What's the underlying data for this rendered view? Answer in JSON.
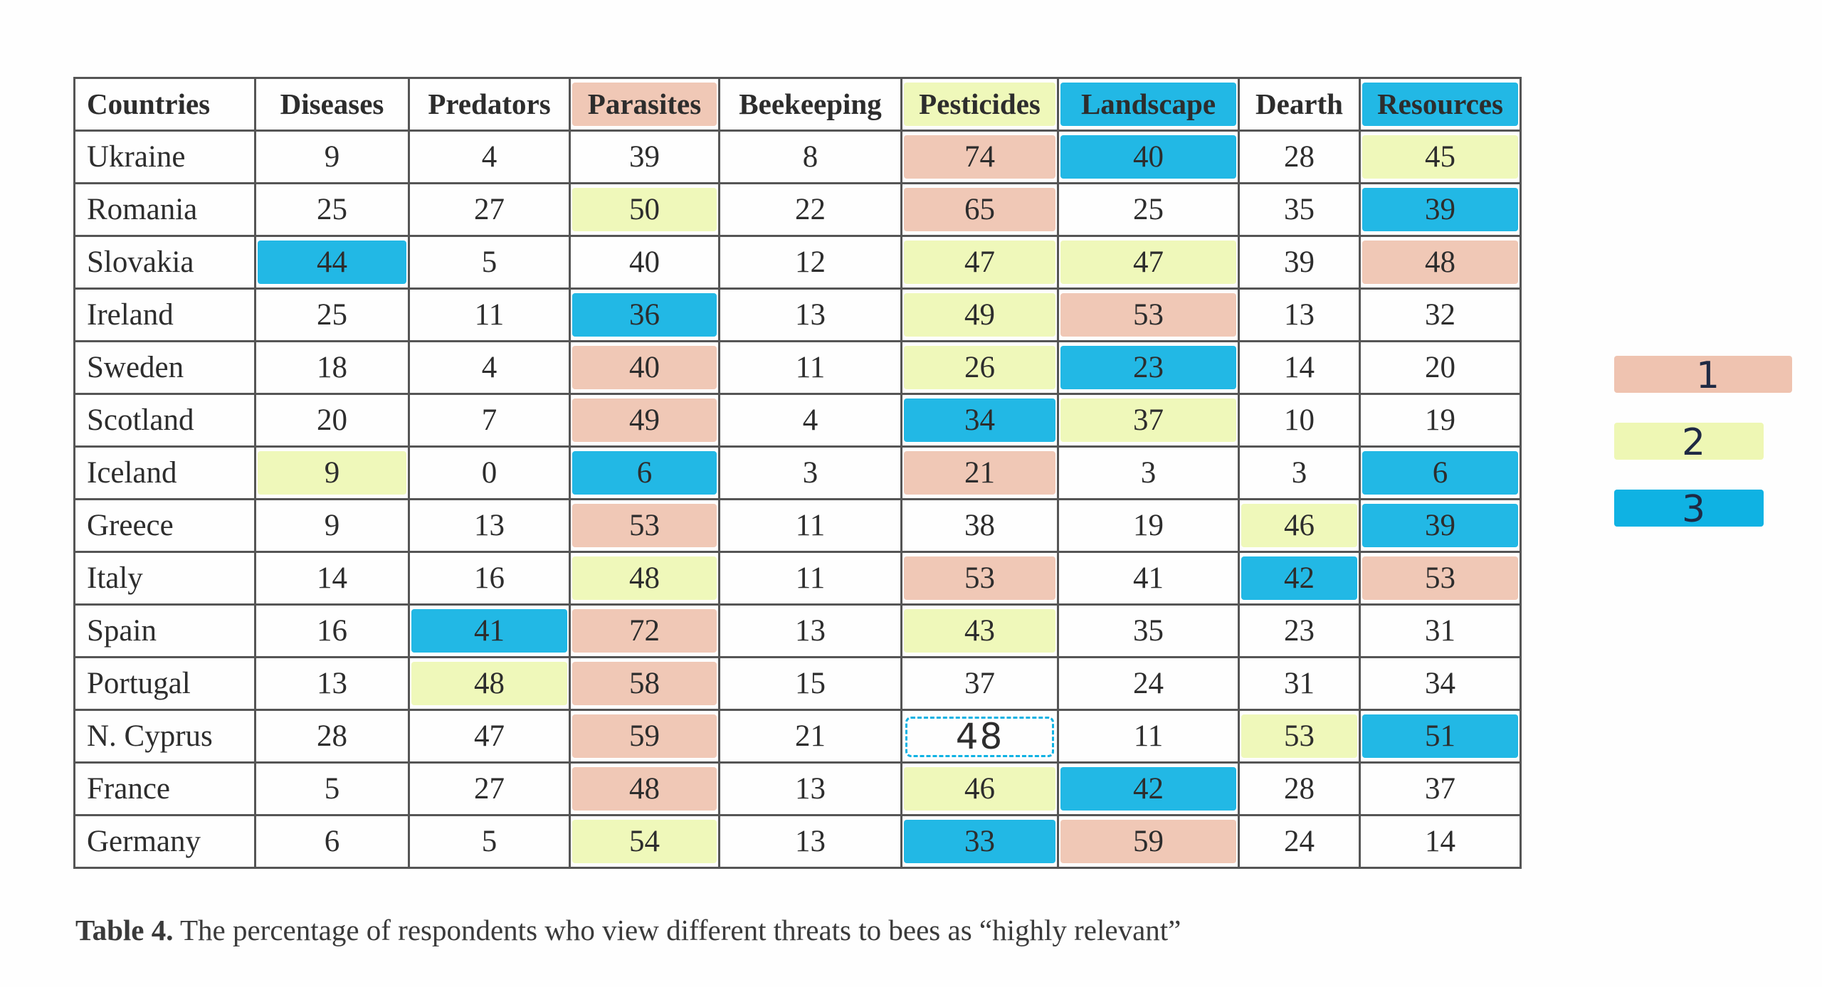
{
  "table": {
    "headers": [
      "Countries",
      "Diseases",
      "Predators",
      "Parasites",
      "Beekeeping",
      "Pesticides",
      "Landscape",
      "Dearth",
      "Resources"
    ],
    "header_marks": [
      "",
      "",
      "",
      "1",
      "",
      "2",
      "3",
      "",
      "3"
    ],
    "rows": [
      {
        "country": "Ukraine",
        "values": [
          "9",
          "4",
          "39",
          "8",
          "74",
          "40",
          "28",
          "45"
        ],
        "marks": [
          "",
          "",
          "",
          "",
          "1",
          "3",
          "",
          "2"
        ]
      },
      {
        "country": "Romania",
        "values": [
          "25",
          "27",
          "50",
          "22",
          "65",
          "25",
          "35",
          "39"
        ],
        "marks": [
          "",
          "",
          "2",
          "",
          "1",
          "",
          "",
          "3"
        ]
      },
      {
        "country": "Slovakia",
        "values": [
          "44",
          "5",
          "40",
          "12",
          "47",
          "47",
          "39",
          "48"
        ],
        "marks": [
          "3",
          "",
          "",
          "",
          "2",
          "2",
          "",
          "1"
        ]
      },
      {
        "country": "Ireland",
        "values": [
          "25",
          "11",
          "36",
          "13",
          "49",
          "53",
          "13",
          "32"
        ],
        "marks": [
          "",
          "",
          "3",
          "",
          "2",
          "1",
          "",
          ""
        ]
      },
      {
        "country": "Sweden",
        "values": [
          "18",
          "4",
          "40",
          "11",
          "26",
          "23",
          "14",
          "20"
        ],
        "marks": [
          "",
          "",
          "1",
          "",
          "2",
          "3",
          "",
          ""
        ]
      },
      {
        "country": "Scotland",
        "values": [
          "20",
          "7",
          "49",
          "4",
          "34",
          "37",
          "10",
          "19"
        ],
        "marks": [
          "",
          "",
          "1",
          "",
          "3",
          "2",
          "",
          ""
        ]
      },
      {
        "country": "Iceland",
        "values": [
          "9",
          "0",
          "6",
          "3",
          "21",
          "3",
          "3",
          "6"
        ],
        "marks": [
          "2",
          "",
          "3",
          "",
          "1",
          "",
          "",
          "3"
        ]
      },
      {
        "country": "Greece",
        "values": [
          "9",
          "13",
          "53",
          "11",
          "38",
          "19",
          "46",
          "39"
        ],
        "marks": [
          "",
          "",
          "1",
          "",
          "",
          "",
          "2",
          "3"
        ]
      },
      {
        "country": "Italy",
        "values": [
          "14",
          "16",
          "48",
          "11",
          "53",
          "41",
          "42",
          "53"
        ],
        "marks": [
          "",
          "",
          "2",
          "",
          "1",
          "",
          "3",
          "1"
        ]
      },
      {
        "country": "Spain",
        "values": [
          "16",
          "41",
          "72",
          "13",
          "43",
          "35",
          "23",
          "31"
        ],
        "marks": [
          "",
          "3",
          "1",
          "",
          "2",
          "",
          "",
          ""
        ]
      },
      {
        "country": "Portugal",
        "values": [
          "13",
          "48",
          "58",
          "15",
          "37",
          "24",
          "31",
          "34"
        ],
        "marks": [
          "",
          "2",
          "1",
          "",
          "",
          "",
          "",
          ""
        ]
      },
      {
        "country": "N. Cyprus",
        "values": [
          "28",
          "47",
          "59",
          "21",
          "48",
          "11",
          "53",
          "51"
        ],
        "marks": [
          "",
          "",
          "1",
          "",
          "hand",
          "",
          "2",
          "3"
        ]
      },
      {
        "country": "France",
        "values": [
          "5",
          "27",
          "48",
          "13",
          "46",
          "42",
          "28",
          "37"
        ],
        "marks": [
          "",
          "",
          "1",
          "",
          "2",
          "3",
          "",
          ""
        ]
      },
      {
        "country": "Germany",
        "values": [
          "6",
          "5",
          "54",
          "13",
          "33",
          "59",
          "24",
          "14"
        ],
        "marks": [
          "",
          "",
          "2",
          "",
          "3",
          "1",
          "",
          ""
        ]
      }
    ]
  },
  "caption": {
    "label": "Table 4.",
    "text": " The percentage of respondents who view different threats to bees as “highly relevant”"
  },
  "legend": {
    "items": [
      {
        "label": "1",
        "color": "#efc3b0"
      },
      {
        "label": "2",
        "color": "#eef7b4"
      },
      {
        "label": "3",
        "color": "#0fb2e3"
      }
    ]
  },
  "colors": {
    "highlight_1": "#efc3b0",
    "highlight_2": "#eef7b4",
    "highlight_3": "#0fb2e3",
    "grid": "#555555"
  }
}
